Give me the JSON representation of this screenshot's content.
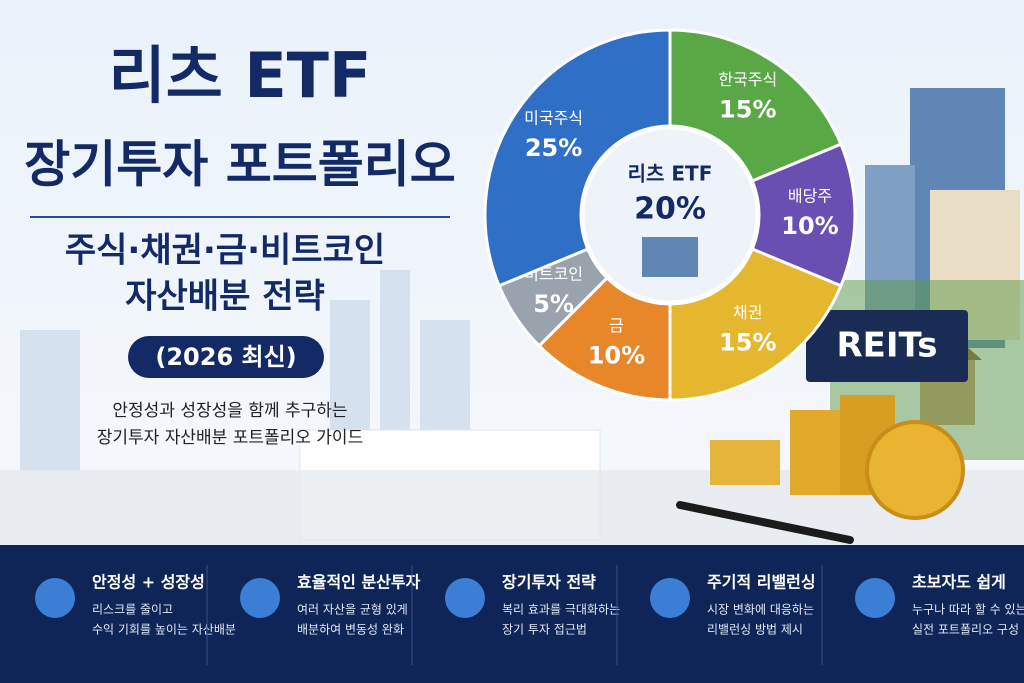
{
  "header": {
    "title_line1": "리츠 ETF",
    "title_line2": "장기투자 포트폴리오",
    "subtitle_line1": "주식·채권·금·비트코인",
    "subtitle_line2": "자산배분 전략",
    "badge": "(2026 최신)",
    "desc_line1": "안정성과 성장성을 함께 추구하는",
    "desc_line2": "장기투자 자산배분 포트폴리오 가이드"
  },
  "chart_data": {
    "type": "pie",
    "categories": [
      "한국주식",
      "배당주",
      "채권",
      "금",
      "비트코인",
      "미국주식"
    ],
    "values": [
      15,
      10,
      15,
      10,
      5,
      25
    ],
    "value_labels": [
      "15%",
      "10%",
      "15%",
      "10%",
      "5%",
      "25%"
    ],
    "colors": [
      "#5aa845",
      "#6a4fb3",
      "#e5b72e",
      "#e8862a",
      "#9aa3ad",
      "#2f6fc6"
    ],
    "center": {
      "label": "리츠 ETF",
      "value": 20,
      "value_label": "20%"
    }
  },
  "scene": {
    "sign": "REITs"
  },
  "features": [
    {
      "title": "안정성 + 성장성",
      "line1": "리스크를 줄이고",
      "line2": "수익 기회를 높이는 자산배분"
    },
    {
      "title": "효율적인 분산투자",
      "line1": "여러 자산을 균형 있게",
      "line2": "배분하여 변동성 완화"
    },
    {
      "title": "장기투자 전략",
      "line1": "복리 효과를 극대화하는",
      "line2": "장기 투자 접근법"
    },
    {
      "title": "주기적 리밸런싱",
      "line1": "시장 변화에 대응하는",
      "line2": "리밸런싱 방법 제시"
    },
    {
      "title": "초보자도 쉽게",
      "line1": "누구나 따라 할 수 있는",
      "line2": "실전 포트폴리오 구성"
    }
  ]
}
